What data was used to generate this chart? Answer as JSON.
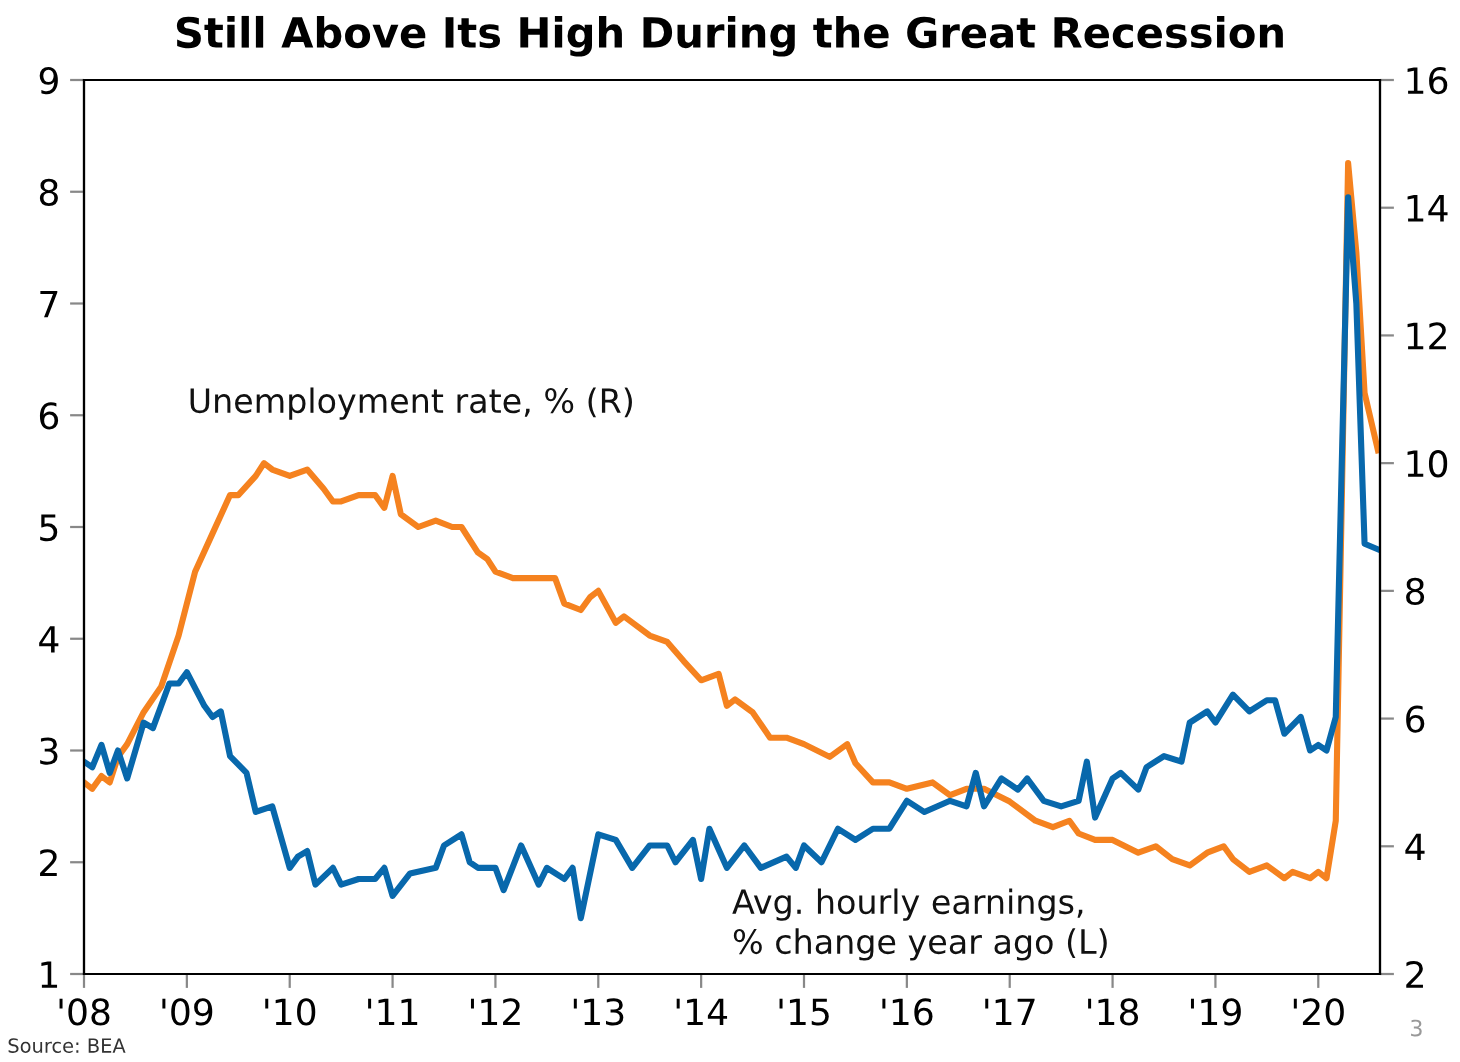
{
  "chart_data": {
    "type": "line",
    "title": "Still Above Its High During the Great Recession",
    "xlim": [
      2008,
      2020.6
    ],
    "xticks": [
      {
        "value": 2008,
        "label": "'08"
      },
      {
        "value": 2009,
        "label": "'09"
      },
      {
        "value": 2010,
        "label": "'10"
      },
      {
        "value": 2011,
        "label": "'11"
      },
      {
        "value": 2012,
        "label": "'12"
      },
      {
        "value": 2013,
        "label": "'13"
      },
      {
        "value": 2014,
        "label": "'14"
      },
      {
        "value": 2015,
        "label": "'15"
      },
      {
        "value": 2016,
        "label": "'16"
      },
      {
        "value": 2017,
        "label": "'17"
      },
      {
        "value": 2018,
        "label": "'18"
      },
      {
        "value": 2019,
        "label": "'19"
      },
      {
        "value": 2020,
        "label": "'20"
      }
    ],
    "ylim": [
      1,
      9
    ],
    "yticks": [
      1,
      2,
      3,
      4,
      5,
      6,
      7,
      8,
      9
    ],
    "y2lim": [
      2,
      16
    ],
    "y2ticks": [
      2,
      4,
      6,
      8,
      10,
      12,
      14,
      16
    ],
    "grid": false,
    "legend": false,
    "marker": "none",
    "line_style": "solid",
    "series": [
      {
        "name": "Unemployment rate, % (R)",
        "color": "#f5821f",
        "axis": "y2",
        "x": [
          2008.0,
          2008.08,
          2008.17,
          2008.25,
          2008.33,
          2008.42,
          2008.58,
          2008.75,
          2008.92,
          2009.08,
          2009.25,
          2009.42,
          2009.5,
          2009.67,
          2009.75,
          2009.83,
          2010.0,
          2010.17,
          2010.33,
          2010.42,
          2010.5,
          2010.67,
          2010.83,
          2010.92,
          2011.0,
          2011.08,
          2011.25,
          2011.42,
          2011.58,
          2011.67,
          2011.83,
          2011.92,
          2012.0,
          2012.17,
          2012.42,
          2012.58,
          2012.67,
          2012.83,
          2012.92,
          2013.0,
          2013.17,
          2013.25,
          2013.5,
          2013.67,
          2013.83,
          2014.0,
          2014.17,
          2014.25,
          2014.33,
          2014.5,
          2014.67,
          2014.83,
          2015.0,
          2015.25,
          2015.42,
          2015.5,
          2015.67,
          2015.83,
          2016.0,
          2016.25,
          2016.42,
          2016.58,
          2016.75,
          2017.0,
          2017.25,
          2017.42,
          2017.58,
          2017.67,
          2017.83,
          2018.0,
          2018.25,
          2018.42,
          2018.58,
          2018.75,
          2018.92,
          2019.08,
          2019.17,
          2019.33,
          2019.5,
          2019.67,
          2019.75,
          2019.92,
          2020.0,
          2020.08,
          2020.17,
          2020.29,
          2020.37,
          2020.45,
          2020.58
        ],
        "values": [
          5.0,
          4.9,
          5.1,
          5.0,
          5.4,
          5.6,
          6.1,
          6.5,
          7.3,
          8.3,
          8.9,
          9.5,
          9.5,
          9.8,
          10.0,
          9.9,
          9.8,
          9.9,
          9.6,
          9.4,
          9.4,
          9.5,
          9.5,
          9.3,
          9.8,
          9.2,
          9.0,
          9.1,
          9.0,
          9.0,
          8.6,
          8.5,
          8.3,
          8.2,
          8.2,
          8.2,
          7.8,
          7.7,
          7.9,
          8.0,
          7.5,
          7.6,
          7.3,
          7.2,
          6.9,
          6.6,
          6.7,
          6.2,
          6.3,
          6.1,
          5.7,
          5.7,
          5.6,
          5.4,
          5.6,
          5.3,
          5.0,
          5.0,
          4.9,
          5.0,
          4.8,
          4.9,
          4.9,
          4.7,
          4.4,
          4.3,
          4.4,
          4.2,
          4.1,
          4.1,
          3.9,
          4.0,
          3.8,
          3.7,
          3.9,
          4.0,
          3.8,
          3.6,
          3.7,
          3.5,
          3.6,
          3.5,
          3.6,
          3.5,
          4.4,
          14.7,
          13.3,
          11.1,
          10.2
        ]
      },
      {
        "name": "Avg. hourly earnings,\n% change year ago (L)",
        "color": "#0868ac",
        "axis": "y",
        "x": [
          2008.0,
          2008.08,
          2008.17,
          2008.25,
          2008.33,
          2008.42,
          2008.58,
          2008.67,
          2008.83,
          2008.92,
          2009.0,
          2009.17,
          2009.25,
          2009.33,
          2009.42,
          2009.58,
          2009.67,
          2009.83,
          2010.0,
          2010.08,
          2010.17,
          2010.25,
          2010.42,
          2010.5,
          2010.67,
          2010.83,
          2010.92,
          2011.0,
          2011.17,
          2011.42,
          2011.5,
          2011.67,
          2011.75,
          2011.83,
          2012.0,
          2012.08,
          2012.25,
          2012.42,
          2012.5,
          2012.67,
          2012.75,
          2012.83,
          2013.0,
          2013.17,
          2013.33,
          2013.5,
          2013.67,
          2013.75,
          2013.92,
          2014.0,
          2014.08,
          2014.25,
          2014.42,
          2014.58,
          2014.83,
          2014.92,
          2015.0,
          2015.17,
          2015.33,
          2015.5,
          2015.67,
          2015.83,
          2016.0,
          2016.17,
          2016.42,
          2016.58,
          2016.67,
          2016.75,
          2016.92,
          2017.0,
          2017.08,
          2017.17,
          2017.33,
          2017.5,
          2017.67,
          2017.75,
          2017.83,
          2018.0,
          2018.08,
          2018.25,
          2018.33,
          2018.5,
          2018.67,
          2018.75,
          2018.92,
          2019.0,
          2019.17,
          2019.33,
          2019.5,
          2019.58,
          2019.67,
          2019.83,
          2019.92,
          2020.0,
          2020.08,
          2020.17,
          2020.29,
          2020.37,
          2020.45,
          2020.58
        ],
        "values": [
          2.9,
          2.85,
          3.05,
          2.8,
          3.0,
          2.75,
          3.25,
          3.2,
          3.6,
          3.6,
          3.7,
          3.4,
          3.3,
          3.35,
          2.95,
          2.8,
          2.45,
          2.5,
          1.95,
          2.05,
          2.1,
          1.8,
          1.95,
          1.8,
          1.85,
          1.85,
          1.95,
          1.7,
          1.9,
          1.95,
          2.15,
          2.25,
          2.0,
          1.95,
          1.95,
          1.75,
          2.15,
          1.8,
          1.95,
          1.85,
          1.95,
          1.5,
          2.25,
          2.2,
          1.95,
          2.15,
          2.15,
          2.0,
          2.2,
          1.85,
          2.3,
          1.95,
          2.15,
          1.95,
          2.05,
          1.95,
          2.15,
          2.0,
          2.3,
          2.2,
          2.3,
          2.3,
          2.55,
          2.45,
          2.55,
          2.5,
          2.8,
          2.5,
          2.75,
          2.7,
          2.65,
          2.75,
          2.55,
          2.5,
          2.55,
          2.9,
          2.4,
          2.75,
          2.8,
          2.65,
          2.85,
          2.95,
          2.9,
          3.25,
          3.35,
          3.25,
          3.5,
          3.35,
          3.45,
          3.45,
          3.15,
          3.3,
          3.0,
          3.05,
          3.0,
          3.3,
          7.95,
          7.0,
          4.85,
          4.8
        ]
      }
    ],
    "annotations": [
      "Source: BEA",
      "3"
    ]
  }
}
